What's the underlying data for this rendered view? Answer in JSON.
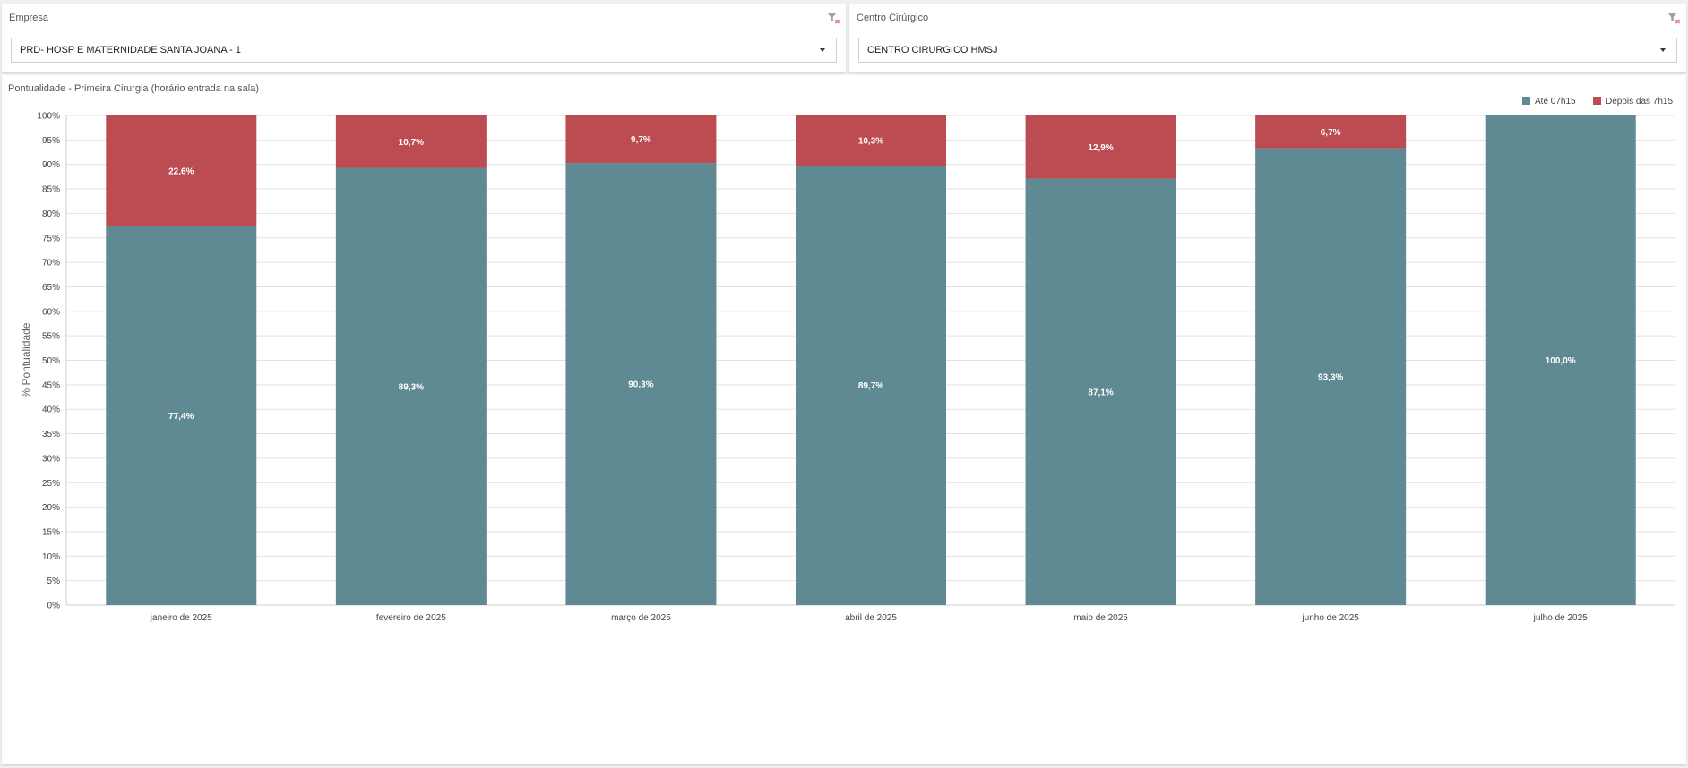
{
  "filters": {
    "empresa": {
      "title": "Empresa",
      "value": "PRD- HOSP E MATERNIDADE SANTA JOANA - 1"
    },
    "centro": {
      "title": "Centro Cirúrgico",
      "value": "CENTRO CIRURGICO HMSJ"
    }
  },
  "colors": {
    "on_time": "#5f8a93",
    "late": "#bd4c52",
    "grid": "#e2e2e2",
    "axis": "#cccccc"
  },
  "chart_data": {
    "type": "bar",
    "stacked": true,
    "title": "Pontualidade - Primeira Cirurgia (horário entrada na sala)",
    "xlabel": "",
    "ylabel": "% Pontualidade",
    "ylim": [
      0,
      100
    ],
    "yticks": [
      "0%",
      "5%",
      "10%",
      "15%",
      "20%",
      "25%",
      "30%",
      "35%",
      "40%",
      "45%",
      "50%",
      "55%",
      "60%",
      "65%",
      "70%",
      "75%",
      "80%",
      "85%",
      "90%",
      "95%",
      "100%"
    ],
    "grid": true,
    "legend_position": "top-right",
    "categories": [
      "janeiro de 2025",
      "fevereiro de 2025",
      "março de 2025",
      "abril de 2025",
      "maio de 2025",
      "junho de 2025",
      "julho de 2025"
    ],
    "series": [
      {
        "name": "Até 07h15",
        "color": "#5f8a93",
        "values": [
          77.4,
          89.3,
          90.3,
          89.7,
          87.1,
          93.3,
          100.0
        ],
        "labels": [
          "77,4%",
          "89,3%",
          "90,3%",
          "89,7%",
          "87,1%",
          "93,3%",
          "100,0%"
        ]
      },
      {
        "name": "Depois das 7h15",
        "color": "#bd4c52",
        "values": [
          22.6,
          10.7,
          9.7,
          10.3,
          12.9,
          6.7,
          0
        ],
        "labels": [
          "22,6%",
          "10,7%",
          "9,7%",
          "10,3%",
          "12,9%",
          "6,7%",
          ""
        ]
      }
    ]
  }
}
